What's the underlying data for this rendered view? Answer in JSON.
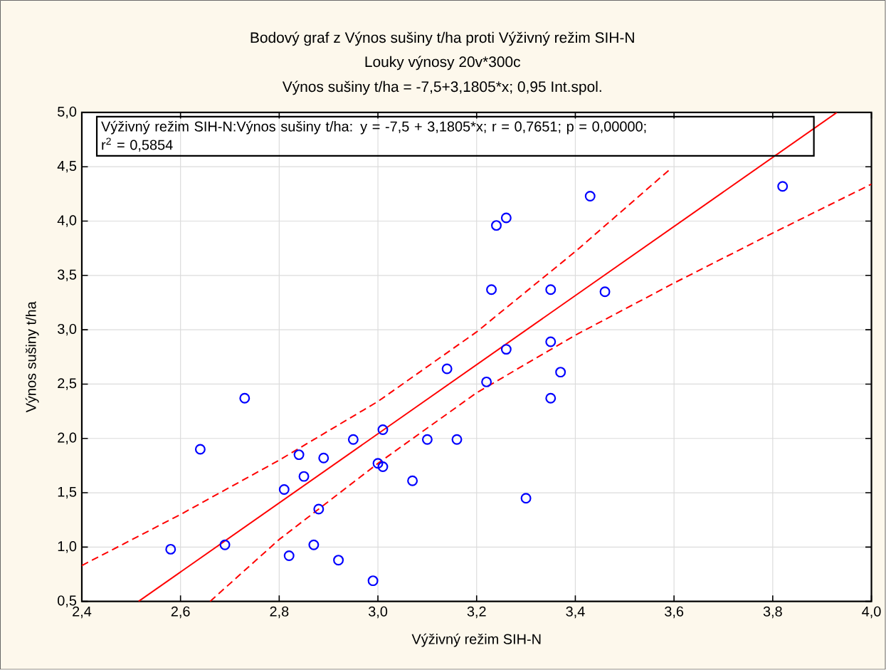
{
  "chart_data": {
    "type": "scatter",
    "title": "Bodový graf z Výnos sušiny t/ha proti Výživný režim SIH-N",
    "subtitle": "Louky výnosy 20v*300c",
    "annotations": [
      "Výnos sušiny t/ha = -7,5+3,1805*x; 0,95 Int.spol.",
      "Výživný režim SIH-N:Výnos sušiny t/ha:   y = -7,5 + 3,1805*x;  r = 0,7651; p = 0,00000;",
      "r$^{2}$ = 0,5854"
    ],
    "xlabel": "Výživný režim SIH-N",
    "ylabel": "Výnos sušiny t/ha",
    "xlim": [
      2.4,
      4.0
    ],
    "ylim": [
      0.5,
      5.0
    ],
    "xticks": [
      {
        "value": 2.4,
        "label": "2,4"
      },
      {
        "value": 2.6,
        "label": "2,6"
      },
      {
        "value": 2.8,
        "label": "2,8"
      },
      {
        "value": 3.0,
        "label": "3,0"
      },
      {
        "value": 3.2,
        "label": "3,2"
      },
      {
        "value": 3.4,
        "label": "3,4"
      },
      {
        "value": 3.6,
        "label": "3,6"
      },
      {
        "value": 3.8,
        "label": "3,8"
      },
      {
        "value": 4.0,
        "label": "4,0"
      }
    ],
    "yticks": [
      {
        "value": 0.5,
        "label": "0,5"
      },
      {
        "value": 1.0,
        "label": "1,0"
      },
      {
        "value": 1.5,
        "label": "1,5"
      },
      {
        "value": 2.0,
        "label": "2,0"
      },
      {
        "value": 2.5,
        "label": "2,5"
      },
      {
        "value": 3.0,
        "label": "3,0"
      },
      {
        "value": 3.5,
        "label": "3,5"
      },
      {
        "value": 4.0,
        "label": "4,0"
      },
      {
        "value": 4.5,
        "label": "4,5"
      },
      {
        "value": 5.0,
        "label": "5,0"
      }
    ],
    "grid": true,
    "series": [
      {
        "color": "#0000ff",
        "marker": "circle",
        "x": [
          2.58,
          2.64,
          2.69,
          2.73,
          2.81,
          2.82,
          2.84,
          2.85,
          2.87,
          2.88,
          2.89,
          2.92,
          2.95,
          2.99,
          3.0,
          3.01,
          3.01,
          3.07,
          3.1,
          3.14,
          3.16,
          3.22,
          3.37,
          3.35,
          3.3,
          3.43,
          3.24,
          3.26,
          3.82,
          3.23,
          3.35,
          3.46,
          3.35,
          3.26
        ],
        "values": [
          0.98,
          1.9,
          1.02,
          2.37,
          1.53,
          0.92,
          1.85,
          1.65,
          1.02,
          1.35,
          1.82,
          0.88,
          1.99,
          0.69,
          1.77,
          1.74,
          2.08,
          1.61,
          1.99,
          2.64,
          1.99,
          2.52,
          2.61,
          2.37,
          1.45,
          4.23,
          3.96,
          4.03,
          4.32,
          3.37,
          3.37,
          3.35,
          2.89,
          2.82
        ]
      },
      {
        "type": "line",
        "color": "#ff0000",
        "marker": "none",
        "line_style": "solid",
        "x": [
          2.515,
          3.93
        ],
        "values": [
          0.5,
          5.0
        ]
      },
      {
        "type": "line",
        "color": "#ff0000",
        "marker": "none",
        "line_style": "dashed",
        "x": [
          2.4,
          2.6,
          2.8,
          3.0,
          3.2,
          3.4,
          3.59
        ],
        "values": [
          0.83,
          1.3,
          1.8,
          2.34,
          2.98,
          3.72,
          4.47
        ]
      },
      {
        "type": "line",
        "color": "#ff0000",
        "marker": "none",
        "line_style": "dashed",
        "x": [
          2.66,
          2.8,
          3.0,
          3.2,
          3.4,
          3.6,
          3.8,
          4.0
        ],
        "values": [
          0.5,
          1.07,
          1.77,
          2.42,
          2.95,
          3.43,
          3.89,
          4.34
        ]
      }
    ]
  }
}
